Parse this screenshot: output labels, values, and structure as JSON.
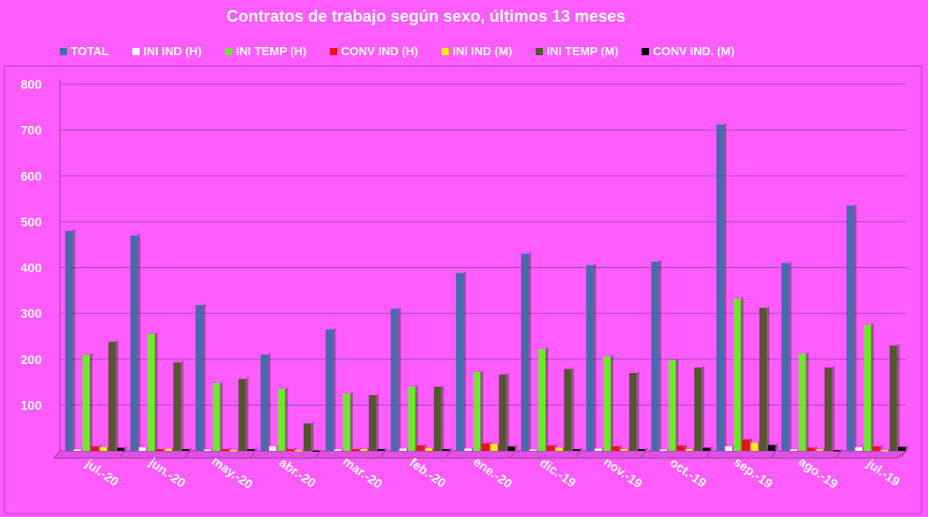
{
  "chart_data": {
    "type": "bar",
    "title": "Contratos de trabajo según sexo, últimos 13 meses",
    "xlabel": "",
    "ylabel": "",
    "ylim": [
      0,
      800
    ],
    "yticks": [
      100,
      200,
      300,
      400,
      500,
      600,
      700,
      800
    ],
    "grid": true,
    "legend_position": "top",
    "categories": [
      "jul.-20",
      "jun.-20",
      "may.-20",
      "abr.-20",
      "mar.-20",
      "feb.-20",
      "ene.-20",
      "dic.-19",
      "nov.-19",
      "oct.-19",
      "sep.-19",
      "ago.-19",
      "jul.-19"
    ],
    "series": [
      {
        "name": "TOTAL",
        "color": "#3f6fa8",
        "values": [
          480,
          470,
          318,
          210,
          265,
          310,
          388,
          430,
          405,
          413,
          712,
          410,
          535
        ]
      },
      {
        "name": "INI IND (H)",
        "color": "#ffffff",
        "values": [
          3,
          8,
          3,
          10,
          3,
          5,
          5,
          3,
          5,
          3,
          10,
          3,
          8
        ]
      },
      {
        "name": "INI TEMP (H)",
        "color": "#66ee22",
        "values": [
          210,
          255,
          148,
          135,
          125,
          140,
          172,
          222,
          206,
          198,
          332,
          212,
          275
        ]
      },
      {
        "name": "CONV IND (H)",
        "color": "#ee1111",
        "values": [
          10,
          4,
          4,
          4,
          4,
          12,
          17,
          12,
          10,
          12,
          25,
          7,
          10
        ]
      },
      {
        "name": "INI IND (M)",
        "color": "#ffee00",
        "values": [
          8,
          5,
          2,
          2,
          4,
          6,
          15,
          7,
          4,
          4,
          18,
          3,
          2
        ]
      },
      {
        "name": "INI TEMP  (M)",
        "color": "#4f5a28",
        "values": [
          238,
          193,
          157,
          60,
          122,
          140,
          167,
          179,
          170,
          182,
          312,
          182,
          230
        ]
      },
      {
        "name": "CONV IND.  (M)",
        "color": "#000000",
        "values": [
          7,
          4,
          4,
          1,
          4,
          4,
          10,
          4,
          4,
          7,
          13,
          2,
          9
        ]
      }
    ]
  }
}
